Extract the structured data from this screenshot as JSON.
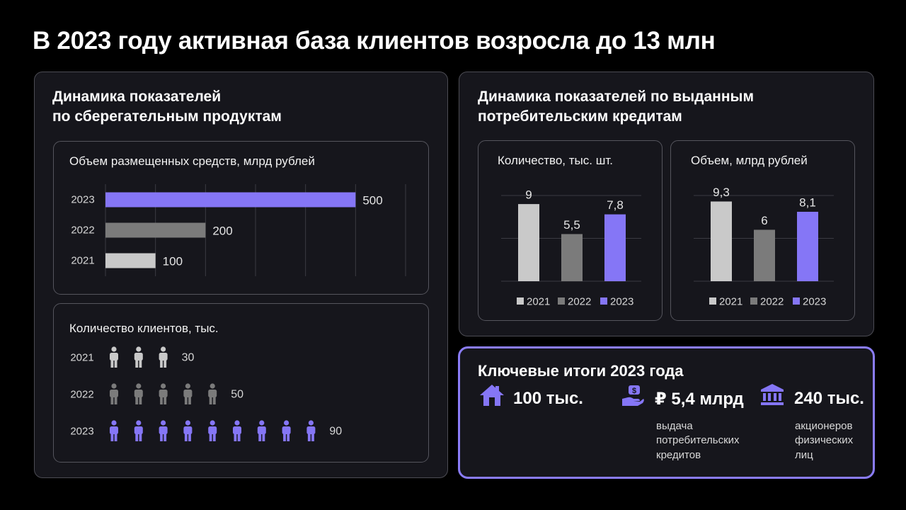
{
  "page": {
    "title": "В 2023 году активная база клиентов возросла до 13 млн"
  },
  "colors": {
    "y2021": "#c9c9c9",
    "y2022": "#7b7b7b",
    "y2023": "#8576f6",
    "accent_border": "#8a7cf7"
  },
  "savings": {
    "title_line1": "Динамика показателей",
    "title_line2": "по сберегательным продуктам"
  },
  "loans": {
    "title_line1": "Динамика показателей по выданным",
    "title_line2": "потребительским кредитам"
  },
  "key_results": {
    "title": "Ключевые итоги 2023 года",
    "items": [
      {
        "icon": "house-icon",
        "value": "100 тыс.",
        "caption_lines": []
      },
      {
        "icon": "money-hand-icon",
        "value": "₽ 5,4 млрд",
        "caption_lines": [
          "выдача",
          "потребительских",
          "кредитов"
        ]
      },
      {
        "icon": "bank-icon",
        "value": "240 тыс.",
        "caption_lines": [
          "акционеров",
          "физических",
          "лиц"
        ]
      }
    ]
  },
  "chart_data": [
    {
      "type": "bar",
      "orientation": "horizontal",
      "title": "Объем размещенных средств, млрд рублей",
      "categories": [
        "2023",
        "2022",
        "2021"
      ],
      "values": [
        500,
        200,
        100
      ],
      "value_labels": [
        "500",
        "200",
        "100"
      ],
      "xlim": [
        0,
        600
      ],
      "grid": true
    },
    {
      "type": "pictogram",
      "title": "Количество клиентов, тыс.",
      "categories": [
        "2021",
        "2022",
        "2023"
      ],
      "values": [
        30,
        50,
        90
      ],
      "value_labels": [
        "30",
        "50",
        "90"
      ],
      "icons_per_row": [
        3,
        5,
        9
      ],
      "icon": "person-icon"
    },
    {
      "type": "bar",
      "title": "Количество, тыс. шт.",
      "categories": [
        "2021",
        "2022",
        "2023"
      ],
      "values": [
        9,
        5.5,
        7.8
      ],
      "value_labels": [
        "9",
        "5,5",
        "7,8"
      ],
      "ylim": [
        0,
        10
      ],
      "grid": true,
      "legend": "bottom"
    },
    {
      "type": "bar",
      "title": "Объем, млрд рублей",
      "categories": [
        "2021",
        "2022",
        "2023"
      ],
      "values": [
        9.3,
        6,
        8.1
      ],
      "value_labels": [
        "9,3",
        "6",
        "8,1"
      ],
      "ylim": [
        0,
        10
      ],
      "grid": true,
      "legend": "bottom"
    }
  ]
}
